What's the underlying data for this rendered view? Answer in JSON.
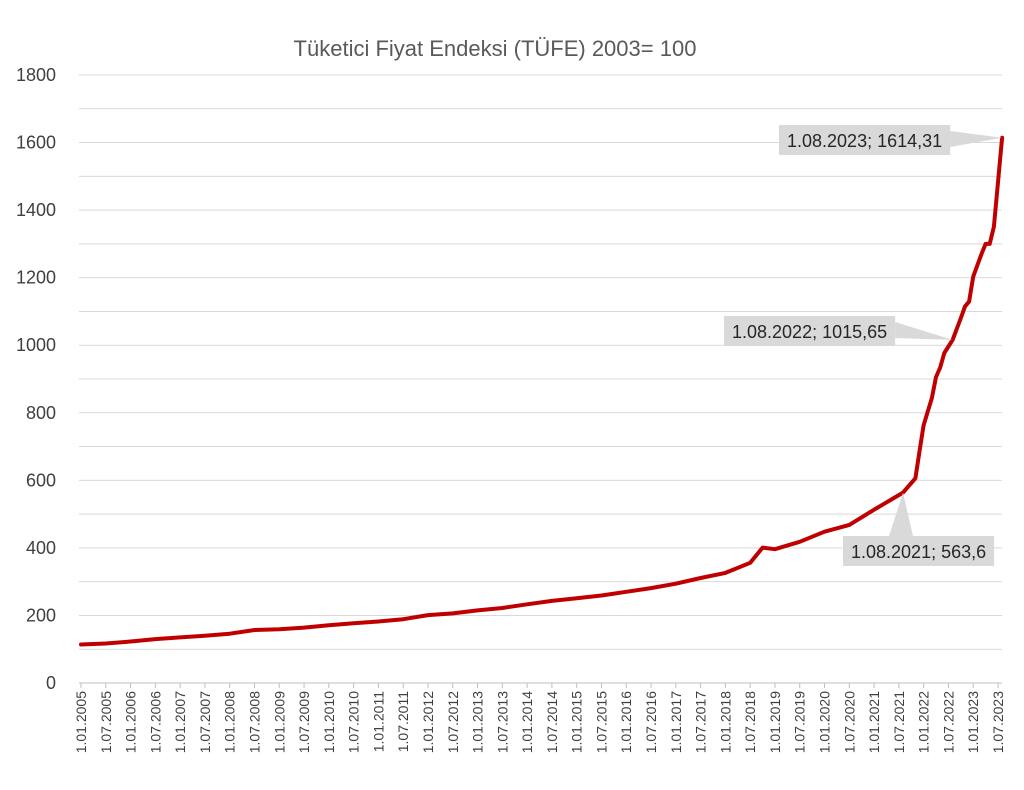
{
  "chart_data": {
    "type": "line",
    "title": "Tüketici Fiyat Endeksi (TÜFE) 2003= 100",
    "xlabel": "",
    "ylabel": "",
    "ylim": [
      0,
      1800
    ],
    "yticks": [
      0,
      200,
      400,
      600,
      800,
      1000,
      1200,
      1400,
      1600,
      1800
    ],
    "xticks": [
      "1.01.2005",
      "1.07.2005",
      "1.01.2006",
      "1.07.2006",
      "1.01.2007",
      "1.07.2007",
      "1.01.2008",
      "1.07.2008",
      "1.01.2009",
      "1.07.2009",
      "1.01.2010",
      "1.07.2010",
      "1.01.2011",
      "1.07.2011",
      "1.01.2012",
      "1.07.2012",
      "1.01.2013",
      "1.07.2013",
      "1.01.2014",
      "1.07.2014",
      "1.01.2015",
      "1.07.2015",
      "1.01.2016",
      "1.07.2016",
      "1.01.2017",
      "1.07.2017",
      "1.01.2018",
      "1.07.2018",
      "1.01.2019",
      "1.07.2019",
      "1.01.2020",
      "1.07.2020",
      "1.01.2021",
      "1.07.2021",
      "1.01.2022",
      "1.07.2022",
      "1.01.2023",
      "1.07.2023"
    ],
    "grid": true,
    "legend": "none",
    "series": [
      {
        "color": "#c00000",
        "points": [
          [
            "2005-01",
            114
          ],
          [
            "2005-07",
            117
          ],
          [
            "2006-01",
            123
          ],
          [
            "2006-07",
            130
          ],
          [
            "2007-01",
            135
          ],
          [
            "2007-07",
            140
          ],
          [
            "2008-01",
            146
          ],
          [
            "2008-07",
            157
          ],
          [
            "2009-01",
            159
          ],
          [
            "2009-07",
            164
          ],
          [
            "2010-01",
            171
          ],
          [
            "2010-07",
            177
          ],
          [
            "2011-01",
            182
          ],
          [
            "2011-07",
            189
          ],
          [
            "2012-01",
            201
          ],
          [
            "2012-07",
            206
          ],
          [
            "2013-01",
            215
          ],
          [
            "2013-07",
            222
          ],
          [
            "2014-01",
            233
          ],
          [
            "2014-07",
            243
          ],
          [
            "2015-01",
            251
          ],
          [
            "2015-07",
            259
          ],
          [
            "2016-01",
            270
          ],
          [
            "2016-07",
            281
          ],
          [
            "2017-01",
            294
          ],
          [
            "2017-07",
            311
          ],
          [
            "2018-01",
            326
          ],
          [
            "2018-07",
            356
          ],
          [
            "2018-10",
            401
          ],
          [
            "2019-01",
            396
          ],
          [
            "2019-07",
            418
          ],
          [
            "2020-01",
            448
          ],
          [
            "2020-07",
            468
          ],
          [
            "2021-01",
            513
          ],
          [
            "2021-08",
            563.6
          ],
          [
            "2021-11",
            606
          ],
          [
            "2021-12",
            686
          ],
          [
            "2022-01",
            763
          ],
          [
            "2022-03",
            844
          ],
          [
            "2022-04",
            906
          ],
          [
            "2022-05",
            934
          ],
          [
            "2022-06",
            977
          ],
          [
            "2022-08",
            1015.65
          ],
          [
            "2022-10",
            1080
          ],
          [
            "2022-11",
            1115
          ],
          [
            "2022-12",
            1129
          ],
          [
            "2023-01",
            1203
          ],
          [
            "2023-03",
            1270
          ],
          [
            "2023-04",
            1300
          ],
          [
            "2023-05",
            1300
          ],
          [
            "2023-06",
            1351
          ],
          [
            "2023-08",
            1614.31
          ]
        ]
      }
    ],
    "annotations": [
      {
        "label": "1.08.2023; 1614,31",
        "date": "2023-08",
        "value": 1614.31
      },
      {
        "label": "1.08.2022; 1015,65",
        "date": "2022-08",
        "value": 1015.65
      },
      {
        "label": "1.08.2021; 563,6",
        "date": "2021-08",
        "value": 563.6
      }
    ],
    "annotation_box_color": "#d9d9d9"
  }
}
